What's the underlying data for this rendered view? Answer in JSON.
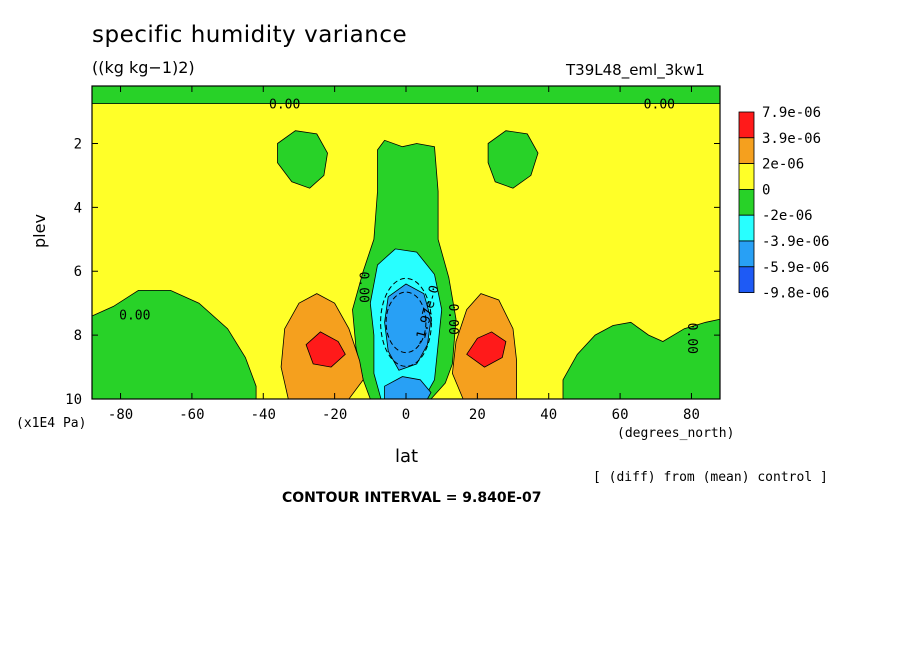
{
  "header": {
    "title": "specific humidity variance",
    "units": "((kg kg−1)2)",
    "run": "T39L48_eml_3kw1"
  },
  "footer": {
    "diff_note": "[ (diff) from (mean) control ]",
    "contour_interval": "CONTOUR INTERVAL = 9.840E-07"
  },
  "chart_data": {
    "type": "heatmap",
    "title": "specific humidity variance",
    "subtitle": "((kg kg−1)2)",
    "xlabel": "lat",
    "xunit": "(degrees_north)",
    "ylabel": "plev",
    "yunit": "(x1E4 Pa)",
    "xlim": [
      -88,
      88
    ],
    "ylim": [
      10,
      0.2
    ],
    "xticks": [
      -80,
      -60,
      -40,
      -20,
      0,
      20,
      40,
      60,
      80
    ],
    "yticks": [
      2,
      4,
      6,
      8,
      10
    ],
    "contour_interval": "9.840E-07",
    "colorbar": {
      "labels": [
        "7.9e-06",
        "3.9e-06",
        "2e-06",
        "0",
        "-2e-06",
        "-3.9e-06",
        "-5.9e-06",
        "-9.8e-06"
      ],
      "colors": [
        "#ff1a1a",
        "#f5a01e",
        "#ffff28",
        "#28d228",
        "#28ffff",
        "#28a0f5",
        "#1e5af5"
      ]
    },
    "colors": {
      "red": "#ff1a1a",
      "orange": "#f5a01e",
      "yellow": "#ffff28",
      "green": "#28d228",
      "cyan": "#28ffff",
      "lightblue": "#28a0f5",
      "blue": "#1e5af5"
    },
    "contour_labels": [
      {
        "text": "0.00",
        "lat": -34,
        "plev": 0.8
      },
      {
        "text": "0.00",
        "lat": 71,
        "plev": 0.8
      },
      {
        "text": "0.00",
        "lat": -76,
        "plev": 7.4
      },
      {
        "text": "0.00",
        "lat": -12,
        "plev": 6.5
      },
      {
        "text": "0.00",
        "lat": 13,
        "plev": 7.5
      },
      {
        "text": "-1.97e-0",
        "lat": 6,
        "plev": 7.4
      },
      {
        "text": "0.00",
        "lat": 80,
        "plev": 8.1
      }
    ],
    "regions": [
      {
        "name": "upper-green-band",
        "level": "green",
        "pts": [
          [
            -88,
            0.2
          ],
          [
            88,
            0.2
          ],
          [
            88,
            0.75
          ],
          [
            -88,
            0.75
          ]
        ]
      },
      {
        "name": "upper-left-green-blob",
        "level": "green",
        "pts": [
          [
            -36,
            2.0
          ],
          [
            -31,
            1.6
          ],
          [
            -25,
            1.7
          ],
          [
            -22,
            2.3
          ],
          [
            -23,
            3.0
          ],
          [
            -27,
            3.4
          ],
          [
            -32,
            3.2
          ],
          [
            -36,
            2.6
          ]
        ]
      },
      {
        "name": "upper-right-green-blob",
        "level": "green",
        "pts": [
          [
            23,
            2.0
          ],
          [
            28,
            1.6
          ],
          [
            34,
            1.7
          ],
          [
            37,
            2.3
          ],
          [
            35,
            3.0
          ],
          [
            30,
            3.4
          ],
          [
            25,
            3.2
          ],
          [
            23,
            2.6
          ]
        ]
      },
      {
        "name": "central-green-column",
        "level": "green",
        "pts": [
          [
            -8,
            2.2
          ],
          [
            -6,
            1.9
          ],
          [
            -1,
            2.1
          ],
          [
            3,
            2.0
          ],
          [
            8,
            2.1
          ],
          [
            9,
            3.5
          ],
          [
            9,
            5.0
          ],
          [
            12,
            6.2
          ],
          [
            14,
            7.5
          ],
          [
            13,
            8.9
          ],
          [
            11,
            9.5
          ],
          [
            7,
            10.0
          ],
          [
            -10,
            10.0
          ],
          [
            -12,
            9.4
          ],
          [
            -14,
            8.4
          ],
          [
            -15,
            7.2
          ],
          [
            -12,
            6.0
          ],
          [
            -9,
            5.0
          ],
          [
            -8,
            3.5
          ]
        ]
      },
      {
        "name": "left-green-band",
        "level": "green",
        "pts": [
          [
            -88,
            7.4
          ],
          [
            -82,
            7.1
          ],
          [
            -75,
            6.6
          ],
          [
            -66,
            6.6
          ],
          [
            -58,
            7.0
          ],
          [
            -50,
            7.8
          ],
          [
            -45,
            8.7
          ],
          [
            -42,
            9.6
          ],
          [
            -42,
            10.0
          ],
          [
            -88,
            10.0
          ]
        ]
      },
      {
        "name": "right-green-band",
        "level": "green",
        "pts": [
          [
            44,
            10.0
          ],
          [
            44,
            9.4
          ],
          [
            48,
            8.6
          ],
          [
            53,
            8.0
          ],
          [
            58,
            7.7
          ],
          [
            63,
            7.6
          ],
          [
            68,
            8.0
          ],
          [
            72,
            8.2
          ],
          [
            78,
            7.8
          ],
          [
            84,
            7.6
          ],
          [
            88,
            7.5
          ],
          [
            88,
            10.0
          ]
        ]
      },
      {
        "name": "left-orange-lobe",
        "level": "orange",
        "pts": [
          [
            -33,
            10.0
          ],
          [
            -35,
            9.0
          ],
          [
            -34,
            7.8
          ],
          [
            -30,
            7.0
          ],
          [
            -25,
            6.7
          ],
          [
            -20,
            7.0
          ],
          [
            -16,
            7.8
          ],
          [
            -13,
            8.8
          ],
          [
            -12,
            9.4
          ],
          [
            -16,
            10.0
          ]
        ]
      },
      {
        "name": "right-orange-lobe",
        "level": "orange",
        "pts": [
          [
            16,
            10.0
          ],
          [
            13,
            9.2
          ],
          [
            14,
            8.2
          ],
          [
            17,
            7.2
          ],
          [
            21,
            6.7
          ],
          [
            26,
            6.9
          ],
          [
            30,
            7.8
          ],
          [
            31,
            8.8
          ],
          [
            31,
            10.0
          ]
        ]
      },
      {
        "name": "left-red-core",
        "level": "red",
        "pts": [
          [
            -28,
            8.3
          ],
          [
            -24,
            7.9
          ],
          [
            -19,
            8.2
          ],
          [
            -17,
            8.6
          ],
          [
            -21,
            9.0
          ],
          [
            -26,
            8.9
          ]
        ]
      },
      {
        "name": "right-red-core",
        "level": "red",
        "pts": [
          [
            17,
            8.6
          ],
          [
            20,
            8.1
          ],
          [
            24,
            7.9
          ],
          [
            28,
            8.2
          ],
          [
            27,
            8.7
          ],
          [
            22,
            9.0
          ]
        ]
      },
      {
        "name": "central-cyan-area",
        "level": "cyan",
        "pts": [
          [
            -8,
            5.8
          ],
          [
            -3,
            5.3
          ],
          [
            3,
            5.4
          ],
          [
            8,
            6.1
          ],
          [
            10,
            7.2
          ],
          [
            9,
            8.3
          ],
          [
            8,
            9.4
          ],
          [
            5,
            10.0
          ],
          [
            -7,
            10.0
          ],
          [
            -9,
            9.2
          ],
          [
            -9,
            8.0
          ],
          [
            -10,
            7.0
          ]
        ]
      },
      {
        "name": "central-lightblue-core",
        "level": "lightblue",
        "pts": [
          [
            -5,
            6.8
          ],
          [
            0,
            6.4
          ],
          [
            5,
            6.7
          ],
          [
            7,
            7.5
          ],
          [
            6,
            8.3
          ],
          [
            3,
            8.9
          ],
          [
            -2,
            9.1
          ],
          [
            -5,
            8.5
          ],
          [
            -6,
            7.6
          ]
        ]
      },
      {
        "name": "lower-lightblue-patch",
        "level": "lightblue",
        "pts": [
          [
            -6,
            9.6
          ],
          [
            -1,
            9.3
          ],
          [
            4,
            9.4
          ],
          [
            7,
            9.8
          ],
          [
            6,
            10.0
          ],
          [
            -6,
            10.0
          ]
        ]
      }
    ]
  }
}
